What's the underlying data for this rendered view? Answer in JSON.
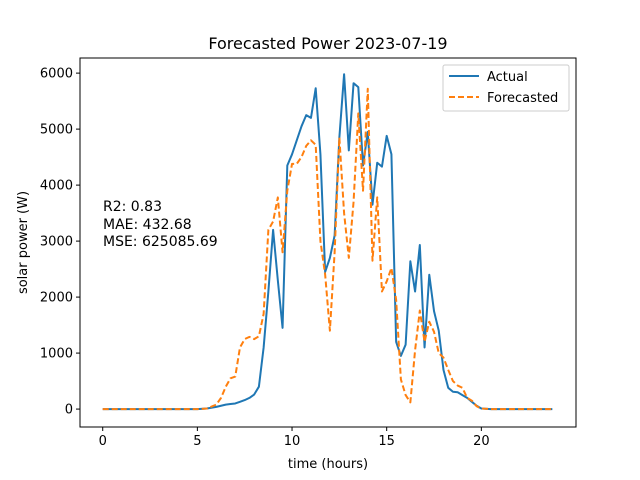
{
  "chart_data": {
    "type": "line",
    "title": "Forecasted Power 2023-07-19",
    "xlabel": "time (hours)",
    "ylabel": "solar power (W)",
    "xlim": [
      -1.2,
      25
    ],
    "ylim": [
      -320,
      6270
    ],
    "xticks": [
      0,
      5,
      10,
      15,
      20
    ],
    "yticks": [
      0,
      1000,
      2000,
      3000,
      4000,
      5000,
      6000
    ],
    "grid": false,
    "legend_position": "top-right",
    "annotation_lines": [
      "R2: 0.83",
      "MAE: 432.68",
      "MSE: 625085.69"
    ],
    "series": [
      {
        "name": "Actual",
        "color": "#1f77b4",
        "dash": "solid",
        "x": [
          0,
          0.5,
          1,
          1.5,
          2,
          2.5,
          3,
          3.5,
          4,
          4.5,
          5,
          5.5,
          6,
          6.25,
          6.5,
          6.75,
          7,
          7.25,
          7.5,
          7.75,
          8,
          8.25,
          8.5,
          8.75,
          9,
          9.25,
          9.5,
          9.75,
          10,
          10.25,
          10.5,
          10.75,
          11,
          11.25,
          11.5,
          11.75,
          12,
          12.25,
          12.5,
          12.75,
          13,
          13.25,
          13.5,
          13.75,
          14,
          14.25,
          14.5,
          14.75,
          15,
          15.25,
          15.5,
          15.75,
          16,
          16.25,
          16.5,
          16.75,
          17,
          17.25,
          17.5,
          17.75,
          18,
          18.25,
          18.5,
          18.75,
          19,
          19.25,
          19.5,
          19.75,
          20,
          20.5,
          21,
          21.5,
          22,
          22.5,
          23,
          23.5,
          23.75
        ],
        "y": [
          0,
          0,
          0,
          0,
          0,
          0,
          0,
          0,
          0,
          0,
          0,
          10,
          40,
          60,
          80,
          90,
          100,
          130,
          160,
          200,
          260,
          400,
          1100,
          2100,
          3200,
          2300,
          1450,
          4350,
          4550,
          4800,
          5050,
          5250,
          5200,
          5730,
          4550,
          2450,
          2700,
          3100,
          4850,
          5980,
          4620,
          5820,
          5750,
          4350,
          4950,
          3650,
          4400,
          4330,
          4880,
          4550,
          1200,
          950,
          1150,
          2640,
          2100,
          2930,
          1100,
          2400,
          1750,
          1400,
          700,
          380,
          310,
          300,
          250,
          200,
          130,
          60,
          10,
          0,
          0,
          0,
          0,
          0,
          0,
          0,
          0
        ]
      },
      {
        "name": "Forecasted",
        "color": "#ff7f0e",
        "dash": "dashed",
        "x": [
          0,
          0.5,
          1,
          1.5,
          2,
          2.5,
          3,
          3.5,
          4,
          4.5,
          5,
          5.5,
          6,
          6.25,
          6.5,
          6.75,
          7,
          7.25,
          7.5,
          7.75,
          8,
          8.25,
          8.5,
          8.75,
          9,
          9.25,
          9.5,
          9.75,
          10,
          10.25,
          10.5,
          10.75,
          11,
          11.25,
          11.5,
          11.75,
          12,
          12.25,
          12.5,
          12.75,
          13,
          13.25,
          13.5,
          13.75,
          14,
          14.25,
          14.5,
          14.75,
          15,
          15.25,
          15.5,
          15.75,
          16,
          16.25,
          16.5,
          16.75,
          17,
          17.25,
          17.5,
          17.75,
          18,
          18.25,
          18.5,
          18.75,
          19,
          19.25,
          19.5,
          19.75,
          20,
          20.5,
          21,
          21.5,
          22,
          22.5,
          23,
          23.5,
          23.75
        ],
        "y": [
          0,
          0,
          0,
          0,
          0,
          0,
          0,
          0,
          0,
          0,
          0,
          10,
          80,
          200,
          400,
          550,
          580,
          1100,
          1250,
          1290,
          1250,
          1300,
          1700,
          3200,
          3350,
          3780,
          2800,
          3900,
          4380,
          4380,
          4500,
          4700,
          4800,
          4720,
          3000,
          2400,
          1400,
          2800,
          4850,
          3500,
          2700,
          3700,
          5280,
          3900,
          5720,
          2650,
          3780,
          2100,
          2280,
          2520,
          1950,
          530,
          250,
          120,
          1050,
          1760,
          1200,
          1560,
          1380,
          1000,
          920,
          700,
          500,
          420,
          380,
          200,
          150,
          50,
          10,
          0,
          0,
          0,
          0,
          0,
          0,
          0,
          0
        ]
      }
    ]
  }
}
